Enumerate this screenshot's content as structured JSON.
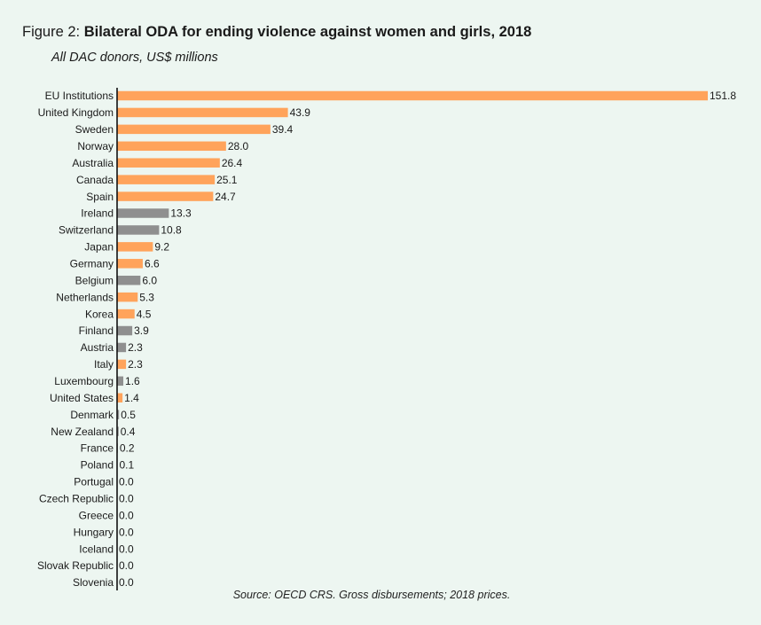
{
  "figure_prefix": "Figure 2:",
  "title": "Bilateral ODA for ending violence against women and girls, 2018",
  "subtitle": "All DAC donors, US$ millions",
  "source": "Source: OECD CRS. Gross disbursements; 2018 prices.",
  "colors": {
    "orange": "#ffa35b",
    "grey": "#8f8f8f",
    "axis": "#111111"
  },
  "chart_data": {
    "type": "bar",
    "orientation": "horizontal",
    "title": "Bilateral ODA for ending violence against women and girls, 2018",
    "subtitle": "All DAC donors, US$ millions",
    "categories": [
      "EU Institutions",
      "United Kingdom",
      "Sweden",
      "Norway",
      "Australia",
      "Canada",
      "Spain",
      "Ireland",
      "Switzerland",
      "Japan",
      "Germany",
      "Belgium",
      "Netherlands",
      "Korea",
      "Finland",
      "Austria",
      "Italy",
      "Luxembourg",
      "United States",
      "Denmark",
      "New Zealand",
      "France",
      "Poland",
      "Portugal",
      "Czech Republic",
      "Greece",
      "Hungary",
      "Iceland",
      "Slovak Republic",
      "Slovenia"
    ],
    "values": [
      151.8,
      43.9,
      39.4,
      28.0,
      26.4,
      25.1,
      24.7,
      13.3,
      10.8,
      9.2,
      6.6,
      6.0,
      5.3,
      4.5,
      3.9,
      2.3,
      2.3,
      1.6,
      1.4,
      0.5,
      0.4,
      0.2,
      0.1,
      0.0,
      0.0,
      0.0,
      0.0,
      0.0,
      0.0,
      0.0
    ],
    "value_labels": [
      "151.8",
      "43.9",
      "39.4",
      "28.0",
      "26.4",
      "25.1",
      "24.7",
      "13.3",
      "10.8",
      "9.2",
      "6.6",
      "6.0",
      "5.3",
      "4.5",
      "3.9",
      "2.3",
      "2.3",
      "1.6",
      "1.4",
      "0.5",
      "0.4",
      "0.2",
      "0.1",
      "0.0",
      "0.0",
      "0.0",
      "0.0",
      "0.0",
      "0.0",
      "0.0"
    ],
    "bar_colors": [
      "orange",
      "orange",
      "orange",
      "orange",
      "orange",
      "orange",
      "orange",
      "grey",
      "grey",
      "orange",
      "orange",
      "grey",
      "orange",
      "orange",
      "grey",
      "grey",
      "orange",
      "grey",
      "orange",
      "grey",
      "grey",
      "grey",
      "grey",
      "grey",
      "grey",
      "grey",
      "grey",
      "grey",
      "grey",
      "grey"
    ],
    "xlim": [
      0,
      151.8
    ],
    "grid": false,
    "legend": "none"
  }
}
